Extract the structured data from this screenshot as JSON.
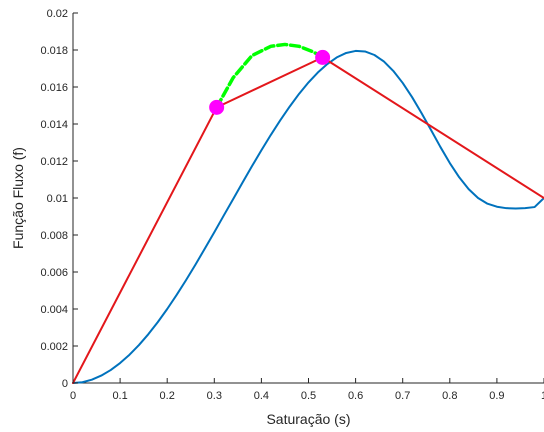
{
  "chart_data": {
    "type": "line",
    "xlabel": "Saturação (s)",
    "ylabel": "Função Fluxo (f)",
    "xlim": [
      0,
      1
    ],
    "ylim": [
      0,
      0.02
    ],
    "grid": false,
    "x_ticks": [
      0,
      0.1,
      0.2,
      0.3,
      0.4,
      0.5,
      0.6,
      0.7,
      0.8,
      0.9,
      1
    ],
    "x_tick_labels": [
      "0",
      "0.1",
      "0.2",
      "0.3",
      "0.4",
      "0.5",
      "0.6",
      "0.7",
      "0.8",
      "0.9",
      "1"
    ],
    "y_ticks": [
      0,
      0.002,
      0.004,
      0.006,
      0.008,
      0.01,
      0.012,
      0.014,
      0.016,
      0.018,
      0.02
    ],
    "y_tick_labels": [
      "0",
      "0.002",
      "0.004",
      "0.006",
      "0.008",
      "0.01",
      "0.012",
      "0.014",
      "0.016",
      "0.018",
      "0.02"
    ],
    "series": [
      {
        "color": "#0072bd",
        "style": "solid",
        "x": [
          0,
          0.02,
          0.04,
          0.06,
          0.08,
          0.1,
          0.12,
          0.14,
          0.16,
          0.18,
          0.2,
          0.22,
          0.24,
          0.26,
          0.28,
          0.3,
          0.32,
          0.34,
          0.36,
          0.38,
          0.4,
          0.42,
          0.44,
          0.46,
          0.48,
          0.5,
          0.52,
          0.54,
          0.56,
          0.58,
          0.6,
          0.62,
          0.64,
          0.66,
          0.68,
          0.7,
          0.72,
          0.74,
          0.76,
          0.78,
          0.8,
          0.82,
          0.84,
          0.86,
          0.88,
          0.9,
          0.92,
          0.94,
          0.96,
          0.98,
          1.0
        ],
        "y": [
          0,
          4e-05,
          0.00018,
          0.0004,
          0.0007,
          0.00108,
          0.00153,
          0.00205,
          0.00264,
          0.00329,
          0.004,
          0.00476,
          0.00556,
          0.0064,
          0.00727,
          0.00815,
          0.00905,
          0.00994,
          0.01084,
          0.01172,
          0.01258,
          0.01341,
          0.0142,
          0.01494,
          0.01563,
          0.01625,
          0.01679,
          0.01724,
          0.0176,
          0.01784,
          0.01795,
          0.01792,
          0.01773,
          0.01738,
          0.01687,
          0.01622,
          0.01545,
          0.01459,
          0.01368,
          0.01276,
          0.01189,
          0.01112,
          0.01048,
          0.01,
          0.00969,
          0.00953,
          0.00945,
          0.00943,
          0.00945,
          0.00951,
          0.01
        ]
      },
      {
        "color": "#e3171b",
        "style": "solid",
        "x": [
          0,
          0.305,
          0.53,
          1
        ],
        "y": [
          0,
          0.0149,
          0.0176,
          0.01
        ]
      },
      {
        "color": "#00ff00",
        "style": "dashed",
        "x": [
          0.305,
          0.34,
          0.38,
          0.42,
          0.45,
          0.48,
          0.51,
          0.53
        ],
        "y": [
          0.0149,
          0.0165,
          0.0177,
          0.0182,
          0.0183,
          0.0182,
          0.0179,
          0.0176
        ]
      }
    ],
    "markers": [
      {
        "x": 0.305,
        "y": 0.0149,
        "color": "#ff00ff"
      },
      {
        "x": 0.53,
        "y": 0.0176,
        "color": "#ff00ff"
      }
    ]
  }
}
